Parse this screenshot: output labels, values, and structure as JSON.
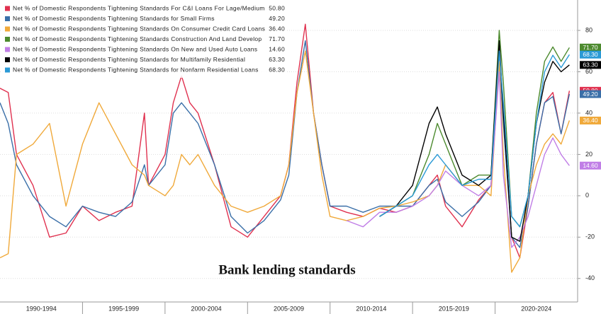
{
  "chart_data": {
    "type": "line",
    "annotation": "Bank lending standards",
    "x": [
      1990,
      1990.5,
      1991,
      1992,
      1993,
      1994,
      1995,
      1996,
      1997,
      1998,
      1998.75,
      1999,
      2000,
      2000.5,
      2001,
      2001.5,
      2002,
      2003,
      2004,
      2005,
      2006,
      2007,
      2007.5,
      2008,
      2008.5,
      2009,
      2009.5,
      2010,
      2011,
      2012,
      2013,
      2014,
      2015,
      2016,
      2016.5,
      2017,
      2018,
      2019,
      2019.75,
      2020.25,
      2020.5,
      2021,
      2021.5,
      2022,
      2022.5,
      2023,
      2023.5,
      2024,
      2024.5
    ],
    "xlim": [
      1990,
      2025
    ],
    "xticks": [
      {
        "value": 1992.5,
        "label": "1990-1994"
      },
      {
        "value": 1997.5,
        "label": "1995-1999"
      },
      {
        "value": 2002.5,
        "label": "2000-2004"
      },
      {
        "value": 2007.5,
        "label": "2005-2009"
      },
      {
        "value": 2012.5,
        "label": "2010-2014"
      },
      {
        "value": 2017.5,
        "label": "2015-2019"
      },
      {
        "value": 2022.5,
        "label": "2020-2024"
      }
    ],
    "ylim": [
      -50,
      93
    ],
    "yticks": [
      -40,
      -20,
      0,
      20,
      40,
      60,
      80
    ],
    "grid": true,
    "series": [
      {
        "name": "Net % of Domestic Respondents Tightening Standards For C&I Loans For Lage/Medium",
        "color": "#e0314f",
        "values": [
          52,
          50,
          20,
          5,
          -20,
          -18,
          -5,
          -12,
          -8,
          -5,
          40,
          5,
          20,
          45,
          58,
          45,
          40,
          15,
          -15,
          -20,
          -10,
          0,
          15,
          55,
          83,
          40,
          15,
          -5,
          -8,
          -10,
          -6,
          -8,
          -5,
          5,
          10,
          -5,
          -15,
          -2,
          5,
          72,
          40,
          -20,
          -30,
          -5,
          25,
          45,
          50,
          30,
          50.8
        ],
        "value_labels": [
          null,
          null,
          null,
          null,
          null,
          null,
          null,
          null,
          null,
          null,
          null,
          null,
          null,
          null,
          null,
          null,
          null,
          null,
          null,
          null,
          null,
          null,
          null,
          null,
          null,
          null,
          null,
          null,
          null,
          null,
          null,
          null,
          null,
          null,
          null,
          null,
          null,
          null,
          null,
          null,
          null,
          null,
          null,
          null,
          null,
          null,
          null,
          null,
          "50.80"
        ]
      },
      {
        "name": "Net % of Domestic Respondents Tightening Standards for Small Firms",
        "color": "#3a6fa8",
        "values": [
          45,
          35,
          15,
          0,
          -10,
          -15,
          -5,
          -8,
          -10,
          -3,
          15,
          5,
          15,
          40,
          45,
          40,
          35,
          15,
          -10,
          -18,
          -12,
          -2,
          10,
          50,
          75,
          40,
          15,
          -5,
          -5,
          -8,
          -5,
          -5,
          -5,
          5,
          8,
          -3,
          -10,
          -3,
          5,
          70,
          35,
          -20,
          -25,
          -5,
          25,
          45,
          48,
          30,
          49.2
        ],
        "value_labels": [
          null,
          null,
          null,
          null,
          null,
          null,
          null,
          null,
          null,
          null,
          null,
          null,
          null,
          null,
          null,
          null,
          null,
          null,
          null,
          null,
          null,
          null,
          null,
          null,
          null,
          null,
          null,
          null,
          null,
          null,
          null,
          null,
          null,
          null,
          null,
          null,
          null,
          null,
          null,
          null,
          null,
          null,
          null,
          null,
          null,
          null,
          null,
          null,
          "49.20"
        ]
      },
      {
        "name": "Net % of Domestic Respondents Tightening Standards On Consumer Credit Card Loans",
        "color": "#f0a93a",
        "values": [
          -30,
          -28,
          20,
          25,
          35,
          -5,
          25,
          45,
          30,
          15,
          10,
          5,
          0,
          5,
          20,
          15,
          20,
          5,
          -5,
          -8,
          -5,
          0,
          15,
          50,
          70,
          40,
          10,
          -10,
          -12,
          -10,
          -6,
          -5,
          -3,
          0,
          5,
          15,
          5,
          5,
          0,
          65,
          20,
          -37,
          -30,
          0,
          15,
          25,
          30,
          25,
          36.4
        ],
        "value_labels": [
          null,
          null,
          null,
          null,
          null,
          null,
          null,
          null,
          null,
          null,
          null,
          null,
          null,
          null,
          null,
          null,
          null,
          null,
          null,
          null,
          null,
          null,
          null,
          null,
          null,
          null,
          null,
          null,
          null,
          null,
          null,
          null,
          null,
          null,
          null,
          null,
          null,
          null,
          null,
          null,
          null,
          null,
          null,
          null,
          null,
          null,
          null,
          null,
          "36.40"
        ]
      },
      {
        "name": "Net % of Domestic Respondents Tightening Standards Construction And Land Develop",
        "color": "#4c8a2e",
        "values": [
          null,
          null,
          null,
          null,
          null,
          null,
          null,
          null,
          null,
          null,
          null,
          null,
          null,
          null,
          null,
          null,
          null,
          null,
          null,
          null,
          null,
          null,
          null,
          null,
          null,
          null,
          null,
          null,
          null,
          null,
          -10,
          -5,
          0,
          20,
          35,
          25,
          5,
          10,
          10,
          80,
          55,
          -10,
          -15,
          0,
          40,
          65,
          72,
          65,
          71.7
        ],
        "value_labels": [
          null,
          null,
          null,
          null,
          null,
          null,
          null,
          null,
          null,
          null,
          null,
          null,
          null,
          null,
          null,
          null,
          null,
          null,
          null,
          null,
          null,
          null,
          null,
          null,
          null,
          null,
          null,
          null,
          null,
          null,
          null,
          null,
          null,
          null,
          null,
          null,
          null,
          null,
          null,
          null,
          null,
          null,
          null,
          null,
          null,
          null,
          null,
          null,
          "71.70"
        ]
      },
      {
        "name": "Net % of Domestic Respondents Tightening Standards On New and Used Auto Loans",
        "color": "#c07ee6",
        "values": [
          null,
          null,
          null,
          null,
          null,
          null,
          null,
          null,
          null,
          null,
          null,
          null,
          null,
          null,
          null,
          null,
          null,
          null,
          null,
          null,
          null,
          null,
          null,
          null,
          null,
          null,
          null,
          null,
          -12,
          -15,
          -8,
          -8,
          -5,
          0,
          5,
          12,
          5,
          0,
          5,
          60,
          10,
          -25,
          -20,
          -10,
          5,
          20,
          28,
          20,
          14.6
        ],
        "value_labels": [
          null,
          null,
          null,
          null,
          null,
          null,
          null,
          null,
          null,
          null,
          null,
          null,
          null,
          null,
          null,
          null,
          null,
          null,
          null,
          null,
          null,
          null,
          null,
          null,
          null,
          null,
          null,
          null,
          null,
          null,
          null,
          null,
          null,
          null,
          null,
          null,
          null,
          null,
          null,
          null,
          null,
          null,
          null,
          null,
          null,
          null,
          null,
          null,
          "14.60"
        ]
      },
      {
        "name": "Net % of Domestic Respondents Tightening Standards for Multifamily Residential",
        "color": "#000000",
        "values": [
          null,
          null,
          null,
          null,
          null,
          null,
          null,
          null,
          null,
          null,
          null,
          null,
          null,
          null,
          null,
          null,
          null,
          null,
          null,
          null,
          null,
          null,
          null,
          null,
          null,
          null,
          null,
          null,
          null,
          null,
          -10,
          -5,
          5,
          35,
          43,
          30,
          10,
          5,
          10,
          75,
          40,
          -20,
          -22,
          0,
          35,
          55,
          65,
          60,
          63.3
        ],
        "value_labels": [
          null,
          null,
          null,
          null,
          null,
          null,
          null,
          null,
          null,
          null,
          null,
          null,
          null,
          null,
          null,
          null,
          null,
          null,
          null,
          null,
          null,
          null,
          null,
          null,
          null,
          null,
          null,
          null,
          null,
          null,
          null,
          null,
          null,
          null,
          null,
          null,
          null,
          null,
          null,
          null,
          null,
          null,
          null,
          null,
          null,
          null,
          null,
          null,
          "63.30"
        ]
      },
      {
        "name": "Net % of Domestic Respondents Tightening Standards for Nonfarm Residential Loans",
        "color": "#2b9ad6",
        "values": [
          null,
          null,
          null,
          null,
          null,
          null,
          null,
          null,
          null,
          null,
          null,
          null,
          null,
          null,
          null,
          null,
          null,
          null,
          null,
          null,
          null,
          null,
          null,
          null,
          null,
          null,
          null,
          null,
          null,
          null,
          -10,
          -5,
          0,
          15,
          20,
          15,
          5,
          8,
          8,
          70,
          45,
          -10,
          -15,
          0,
          35,
          60,
          68,
          62,
          68.3
        ],
        "value_labels": [
          null,
          null,
          null,
          null,
          null,
          null,
          null,
          null,
          null,
          null,
          null,
          null,
          null,
          null,
          null,
          null,
          null,
          null,
          null,
          null,
          null,
          null,
          null,
          null,
          null,
          null,
          null,
          null,
          null,
          null,
          null,
          null,
          null,
          null,
          null,
          null,
          null,
          null,
          null,
          null,
          null,
          null,
          null,
          null,
          null,
          null,
          null,
          null,
          "68.30"
        ]
      }
    ]
  }
}
